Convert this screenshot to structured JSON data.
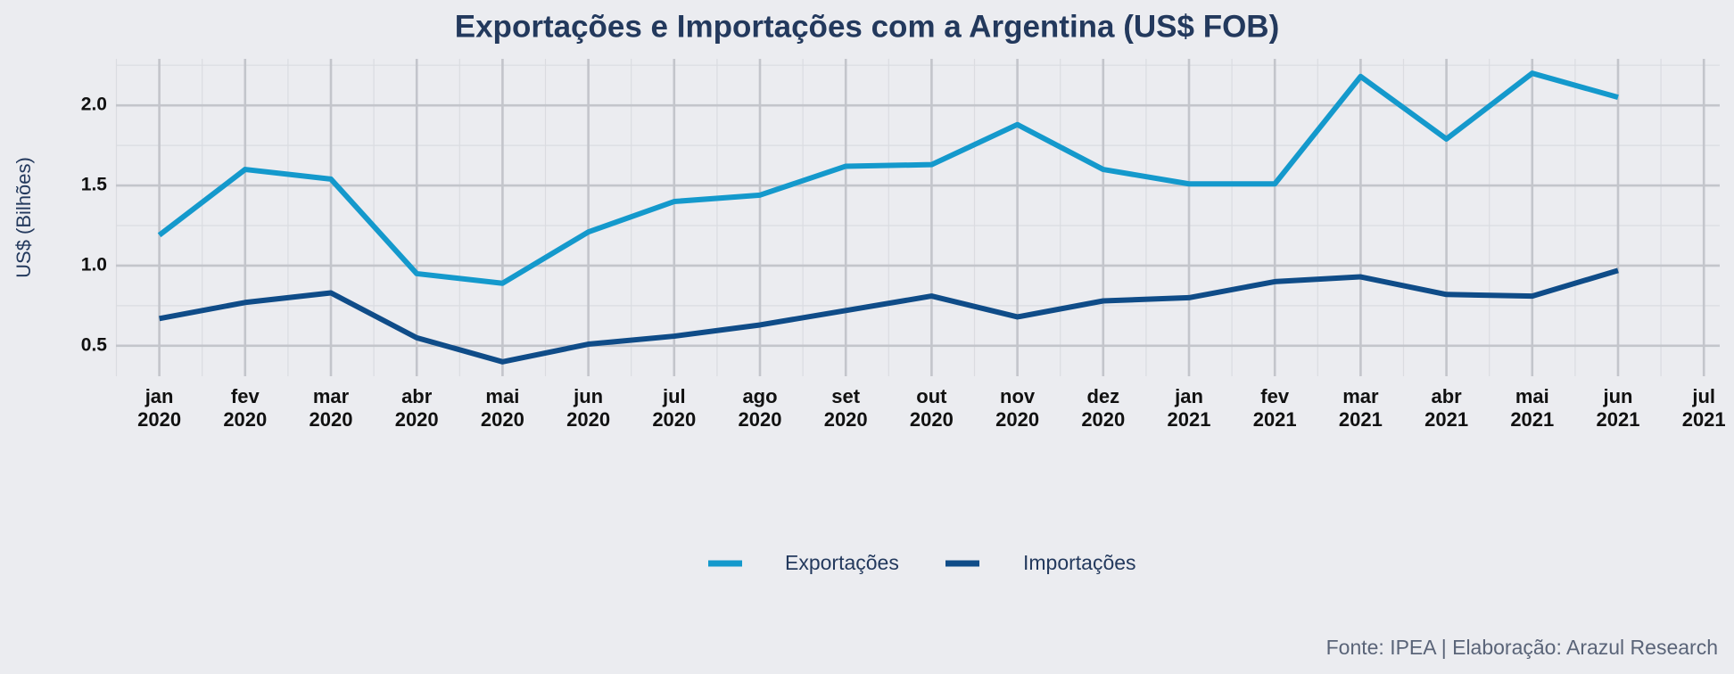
{
  "chart_data": {
    "type": "line",
    "title": "Exportações e Importações com a Argentina (US$ FOB)",
    "y_label": "US$ (Bilhões)",
    "caption": "Fonte: IPEA | Elaboração: Arazul Research",
    "categories": [
      "jan\n2020",
      "fev\n2020",
      "mar\n2020",
      "abr\n2020",
      "mai\n2020",
      "jun\n2020",
      "jul\n2020",
      "ago\n2020",
      "set\n2020",
      "out\n2020",
      "nov\n2020",
      "dez\n2020",
      "jan\n2021",
      "fev\n2021",
      "mar\n2021",
      "abr\n2021",
      "mai\n2021",
      "jun\n2021",
      "jul\n2021"
    ],
    "series": [
      {
        "name": "Exportações",
        "color": "#1499cc",
        "values": [
          1.19,
          1.6,
          1.54,
          0.95,
          0.89,
          1.21,
          1.4,
          1.44,
          1.62,
          1.63,
          1.88,
          1.6,
          1.51,
          1.51,
          2.18,
          1.79,
          2.2,
          2.05,
          null
        ]
      },
      {
        "name": "Importações",
        "color": "#0f4c88",
        "values": [
          0.67,
          0.77,
          0.83,
          0.55,
          0.4,
          0.51,
          0.56,
          0.63,
          0.72,
          0.81,
          0.68,
          0.78,
          0.8,
          0.9,
          0.93,
          0.82,
          0.81,
          0.97,
          null
        ]
      }
    ],
    "ylim": [
      0.31,
      2.29
    ],
    "yticks": [
      0.5,
      {
        "value": 1,
        "label": "1.0"
      },
      1.5,
      {
        "value": 2,
        "label": "2.0"
      }
    ],
    "grid": true,
    "legend": "bottom"
  }
}
